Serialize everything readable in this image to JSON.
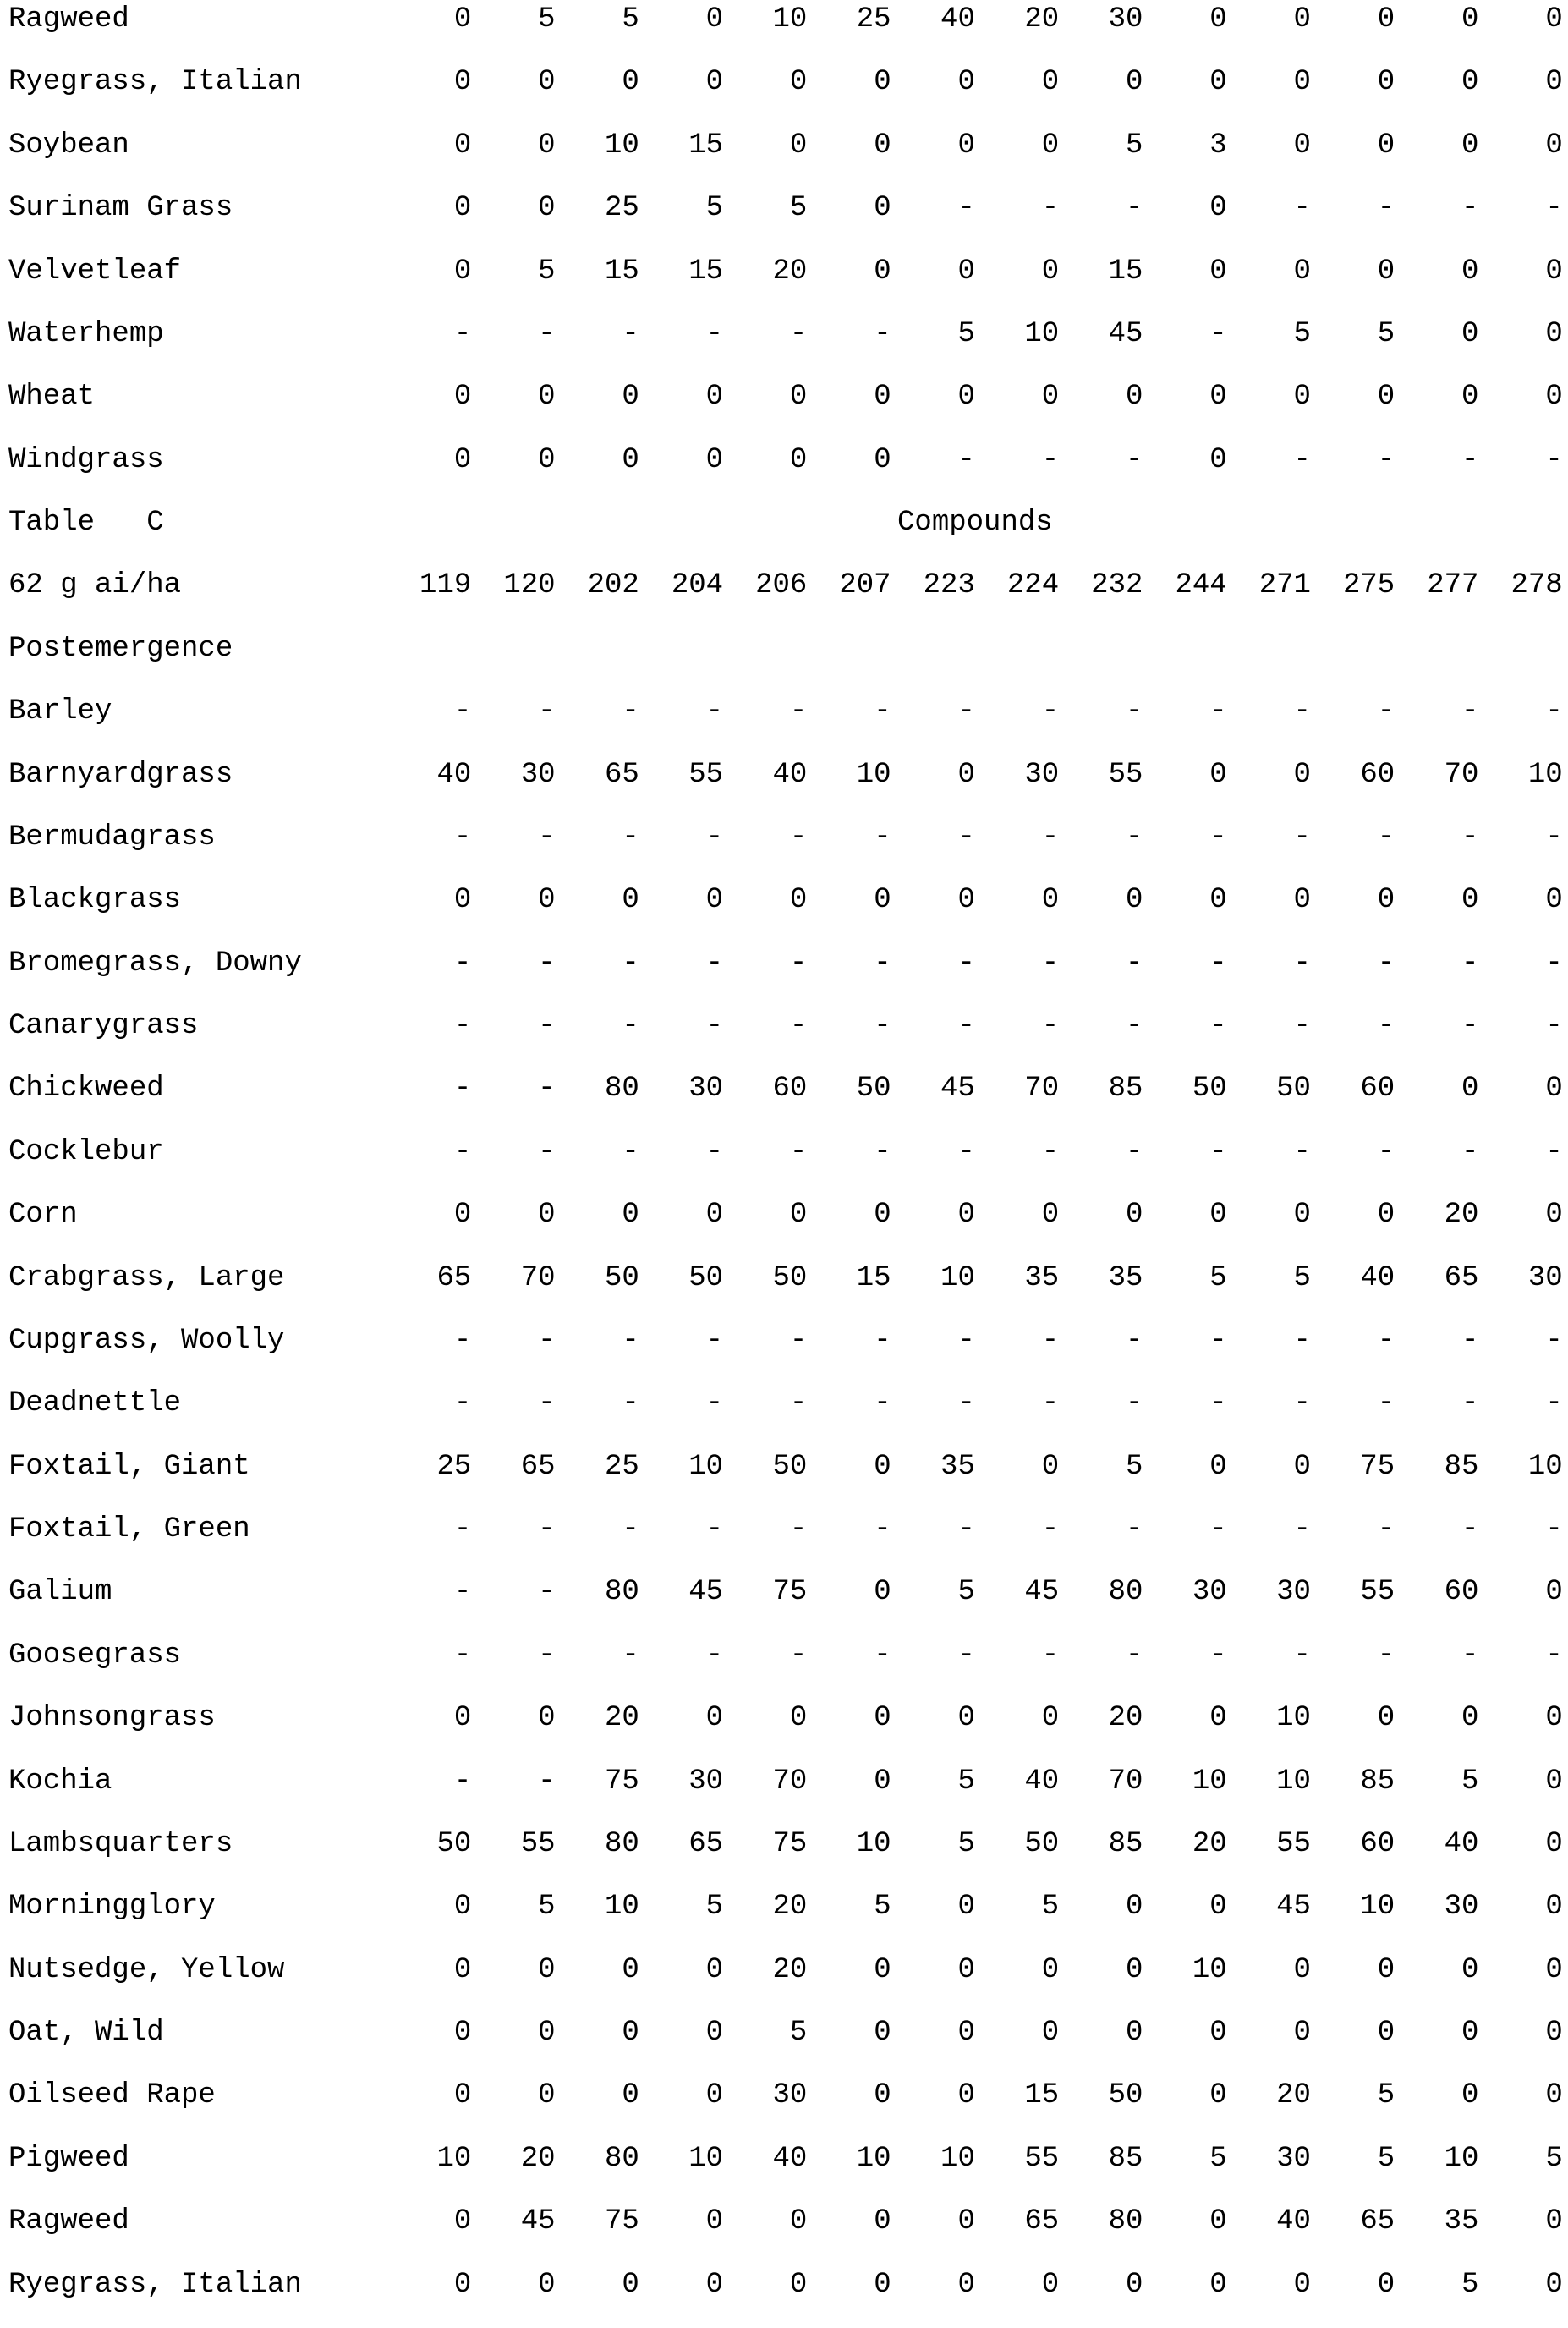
{
  "page": {
    "background": "#ffffff",
    "text_color": "#000000"
  },
  "top_table": {
    "description_rows": [
      {
        "label": "Ragweed",
        "values": [
          "0",
          "5",
          "5",
          "0",
          "10",
          "25",
          "40",
          "20",
          "30",
          "0",
          "0",
          "0",
          "0",
          "0"
        ]
      },
      {
        "label": "Ryegrass, Italian",
        "values": [
          "0",
          "0",
          "0",
          "0",
          "0",
          "0",
          "0",
          "0",
          "0",
          "0",
          "0",
          "0",
          "0",
          "0"
        ]
      },
      {
        "label": "Soybean",
        "values": [
          "0",
          "0",
          "10",
          "15",
          "0",
          "0",
          "0",
          "0",
          "5",
          "3",
          "0",
          "0",
          "0",
          "0"
        ]
      },
      {
        "label": "Surinam Grass",
        "values": [
          "0",
          "0",
          "25",
          "5",
          "5",
          "0",
          "-",
          "-",
          "-",
          "0",
          "-",
          "-",
          "-",
          "-"
        ]
      },
      {
        "label": "Velvetleaf",
        "values": [
          "0",
          "5",
          "15",
          "15",
          "20",
          "0",
          "0",
          "0",
          "15",
          "0",
          "0",
          "0",
          "0",
          "0"
        ]
      },
      {
        "label": "Waterhemp",
        "values": [
          "-",
          "-",
          "-",
          "-",
          "-",
          "-",
          "5",
          "10",
          "45",
          "-",
          "5",
          "5",
          "0",
          "0"
        ]
      },
      {
        "label": "Wheat",
        "values": [
          "0",
          "0",
          "0",
          "0",
          "0",
          "0",
          "0",
          "0",
          "0",
          "0",
          "0",
          "0",
          "0",
          "0"
        ]
      },
      {
        "label": "Windgrass",
        "values": [
          "0",
          "0",
          "0",
          "0",
          "0",
          "0",
          "-",
          "-",
          "-",
          "0",
          "-",
          "-",
          "-",
          "-"
        ]
      }
    ]
  },
  "table_c": {
    "title": "Table   C",
    "compounds_heading": "Compounds",
    "rate_label": "62 g ai/ha",
    "compound_numbers": [
      "119",
      "120",
      "202",
      "204",
      "206",
      "207",
      "223",
      "224",
      "232",
      "244",
      "271",
      "275",
      "277",
      "278"
    ],
    "section_label": "Postemergence",
    "rows": [
      {
        "label": "Barley",
        "values": [
          "-",
          "-",
          "-",
          "-",
          "-",
          "-",
          "-",
          "-",
          "-",
          "-",
          "-",
          "-",
          "-",
          "-"
        ]
      },
      {
        "label": "Barnyardgrass",
        "values": [
          "40",
          "30",
          "65",
          "55",
          "40",
          "10",
          "0",
          "30",
          "55",
          "0",
          "0",
          "60",
          "70",
          "10"
        ]
      },
      {
        "label": "Bermudagrass",
        "values": [
          "-",
          "-",
          "-",
          "-",
          "-",
          "-",
          "-",
          "-",
          "-",
          "-",
          "-",
          "-",
          "-",
          "-"
        ]
      },
      {
        "label": "Blackgrass",
        "values": [
          "0",
          "0",
          "0",
          "0",
          "0",
          "0",
          "0",
          "0",
          "0",
          "0",
          "0",
          "0",
          "0",
          "0"
        ]
      },
      {
        "label": "Bromegrass, Downy",
        "values": [
          "-",
          "-",
          "-",
          "-",
          "-",
          "-",
          "-",
          "-",
          "-",
          "-",
          "-",
          "-",
          "-",
          "-"
        ]
      },
      {
        "label": "Canarygrass",
        "values": [
          "-",
          "-",
          "-",
          "-",
          "-",
          "-",
          "-",
          "-",
          "-",
          "-",
          "-",
          "-",
          "-",
          "-"
        ]
      },
      {
        "label": "Chickweed",
        "values": [
          "-",
          "-",
          "80",
          "30",
          "60",
          "50",
          "45",
          "70",
          "85",
          "50",
          "50",
          "60",
          "0",
          "0"
        ]
      },
      {
        "label": "Cocklebur",
        "values": [
          "-",
          "-",
          "-",
          "-",
          "-",
          "-",
          "-",
          "-",
          "-",
          "-",
          "-",
          "-",
          "-",
          "-"
        ]
      },
      {
        "label": "Corn",
        "values": [
          "0",
          "0",
          "0",
          "0",
          "0",
          "0",
          "0",
          "0",
          "0",
          "0",
          "0",
          "0",
          "20",
          "0"
        ]
      },
      {
        "label": "Crabgrass, Large",
        "values": [
          "65",
          "70",
          "50",
          "50",
          "50",
          "15",
          "10",
          "35",
          "35",
          "5",
          "5",
          "40",
          "65",
          "30"
        ]
      },
      {
        "label": "Cupgrass, Woolly",
        "values": [
          "-",
          "-",
          "-",
          "-",
          "-",
          "-",
          "-",
          "-",
          "-",
          "-",
          "-",
          "-",
          "-",
          "-"
        ]
      },
      {
        "label": "Deadnettle",
        "values": [
          "-",
          "-",
          "-",
          "-",
          "-",
          "-",
          "-",
          "-",
          "-",
          "-",
          "-",
          "-",
          "-",
          "-"
        ]
      },
      {
        "label": "Foxtail, Giant",
        "values": [
          "25",
          "65",
          "25",
          "10",
          "50",
          "0",
          "35",
          "0",
          "5",
          "0",
          "0",
          "75",
          "85",
          "10"
        ]
      },
      {
        "label": "Foxtail, Green",
        "values": [
          "-",
          "-",
          "-",
          "-",
          "-",
          "-",
          "-",
          "-",
          "-",
          "-",
          "-",
          "-",
          "-",
          "-"
        ]
      },
      {
        "label": "Galium",
        "values": [
          "-",
          "-",
          "80",
          "45",
          "75",
          "0",
          "5",
          "45",
          "80",
          "30",
          "30",
          "55",
          "60",
          "0"
        ]
      },
      {
        "label": "Goosegrass",
        "values": [
          "-",
          "-",
          "-",
          "-",
          "-",
          "-",
          "-",
          "-",
          "-",
          "-",
          "-",
          "-",
          "-",
          "-"
        ]
      },
      {
        "label": "Johnsongrass",
        "values": [
          "0",
          "0",
          "20",
          "0",
          "0",
          "0",
          "0",
          "0",
          "20",
          "0",
          "10",
          "0",
          "0",
          "0"
        ]
      },
      {
        "label": "Kochia",
        "values": [
          "-",
          "-",
          "75",
          "30",
          "70",
          "0",
          "5",
          "40",
          "70",
          "10",
          "10",
          "85",
          "5",
          "0"
        ]
      },
      {
        "label": "Lambsquarters",
        "values": [
          "50",
          "55",
          "80",
          "65",
          "75",
          "10",
          "5",
          "50",
          "85",
          "20",
          "55",
          "60",
          "40",
          "0"
        ]
      },
      {
        "label": "Morningglory",
        "values": [
          "0",
          "5",
          "10",
          "5",
          "20",
          "5",
          "0",
          "5",
          "0",
          "0",
          "45",
          "10",
          "30",
          "0"
        ]
      },
      {
        "label": "Nutsedge, Yellow",
        "values": [
          "0",
          "0",
          "0",
          "0",
          "20",
          "0",
          "0",
          "0",
          "0",
          "10",
          "0",
          "0",
          "0",
          "0"
        ]
      },
      {
        "label": "Oat, Wild",
        "values": [
          "0",
          "0",
          "0",
          "0",
          "5",
          "0",
          "0",
          "0",
          "0",
          "0",
          "0",
          "0",
          "0",
          "0"
        ]
      },
      {
        "label": "Oilseed Rape",
        "values": [
          "0",
          "0",
          "0",
          "0",
          "30",
          "0",
          "0",
          "15",
          "50",
          "0",
          "20",
          "5",
          "0",
          "0"
        ]
      },
      {
        "label": "Pigweed",
        "values": [
          "10",
          "20",
          "80",
          "10",
          "40",
          "10",
          "10",
          "55",
          "85",
          "5",
          "30",
          "5",
          "10",
          "5"
        ]
      },
      {
        "label": "Ragweed",
        "values": [
          "0",
          "45",
          "75",
          "0",
          "0",
          "0",
          "0",
          "65",
          "80",
          "0",
          "40",
          "65",
          "35",
          "0"
        ]
      },
      {
        "label": "Ryegrass, Italian",
        "values": [
          "0",
          "0",
          "0",
          "0",
          "0",
          "0",
          "0",
          "0",
          "0",
          "0",
          "0",
          "0",
          "5",
          "0"
        ]
      }
    ]
  }
}
